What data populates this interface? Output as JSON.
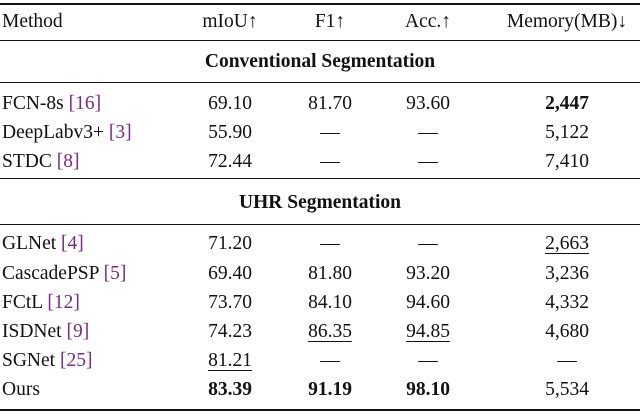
{
  "header": [
    "Method",
    "mIoU↑",
    "F1↑",
    "Acc.↑",
    "Memory(MB)↓"
  ],
  "sections": [
    {
      "title": "Conventional Segmentation",
      "rows": [
        {
          "method": "FCN-8s",
          "ref": "[16]",
          "cells": [
            "69.10",
            "81.70",
            "93.60",
            {
              "text": "2,447",
              "bold": true
            }
          ]
        },
        {
          "method": "DeepLabv3+",
          "ref": "[3]",
          "cells": [
            "55.90",
            "—",
            "—",
            "5,122"
          ]
        },
        {
          "method": "STDC",
          "ref": "[8]",
          "cells": [
            "72.44",
            "—",
            "—",
            "7,410"
          ]
        }
      ]
    },
    {
      "title": "UHR Segmentation",
      "rows": [
        {
          "method": "GLNet",
          "ref": "[4]",
          "cells": [
            "71.20",
            "—",
            "—",
            {
              "text": "2,663",
              "underline": true
            }
          ]
        },
        {
          "method": "CascadePSP",
          "ref": "[5]",
          "cells": [
            "69.40",
            "81.80",
            "93.20",
            "3,236"
          ]
        },
        {
          "method": "FCtL",
          "ref": "[12]",
          "cells": [
            "73.70",
            "84.10",
            "94.60",
            "4,332"
          ]
        },
        {
          "method": "ISDNet",
          "ref": "[9]",
          "cells": [
            "74.23",
            {
              "text": "86.35",
              "underline": true
            },
            {
              "text": "94.85",
              "underline": true
            },
            "4,680"
          ]
        },
        {
          "method": "SGNet",
          "ref": "[25]",
          "cells": [
            {
              "text": "81.21",
              "underline": true
            },
            "—",
            "—",
            "—"
          ]
        },
        {
          "method": "Ours",
          "cells": [
            {
              "text": "83.39",
              "bold": true
            },
            {
              "text": "91.19",
              "bold": true
            },
            {
              "text": "98.10",
              "bold": true
            },
            "5,534"
          ]
        }
      ]
    }
  ]
}
